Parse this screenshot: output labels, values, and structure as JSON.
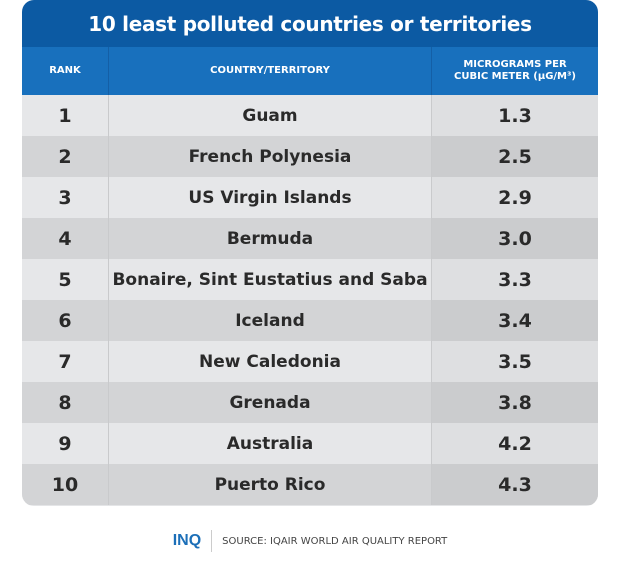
{
  "chart_data": {
    "type": "table",
    "title": "10 least polluted countries or territories",
    "columns": [
      "RANK",
      "COUNTRY/TERRITORY",
      "MICROGRAMS PER CUBIC METER (µG/M³)"
    ],
    "rows": [
      {
        "rank": "1",
        "country": "Guam",
        "value": "1.3"
      },
      {
        "rank": "2",
        "country": "French Polynesia",
        "value": "2.5"
      },
      {
        "rank": "3",
        "country": "US Virgin Islands",
        "value": "2.9"
      },
      {
        "rank": "4",
        "country": "Bermuda",
        "value": "3.0"
      },
      {
        "rank": "5",
        "country": "Bonaire, Sint Eustatius and Saba",
        "value": "3.3"
      },
      {
        "rank": "6",
        "country": "Iceland",
        "value": "3.4"
      },
      {
        "rank": "7",
        "country": "New Caledonia",
        "value": "3.5"
      },
      {
        "rank": "8",
        "country": "Grenada",
        "value": "3.8"
      },
      {
        "rank": "9",
        "country": "Australia",
        "value": "4.2"
      },
      {
        "rank": "10",
        "country": "Puerto Rico",
        "value": "4.3"
      }
    ]
  },
  "header": {
    "unit_line1": "MICROGRAMS PER",
    "unit_line2": "CUBIC METER (µG/M³)"
  },
  "footer": {
    "logo": "INQ",
    "source": "SOURCE: IQAIR WORLD AIR QUALITY REPORT"
  },
  "colors": {
    "title_bg": "#0c5aa3",
    "header_bg": "#1870bd",
    "logo": "#1c6fb8"
  }
}
